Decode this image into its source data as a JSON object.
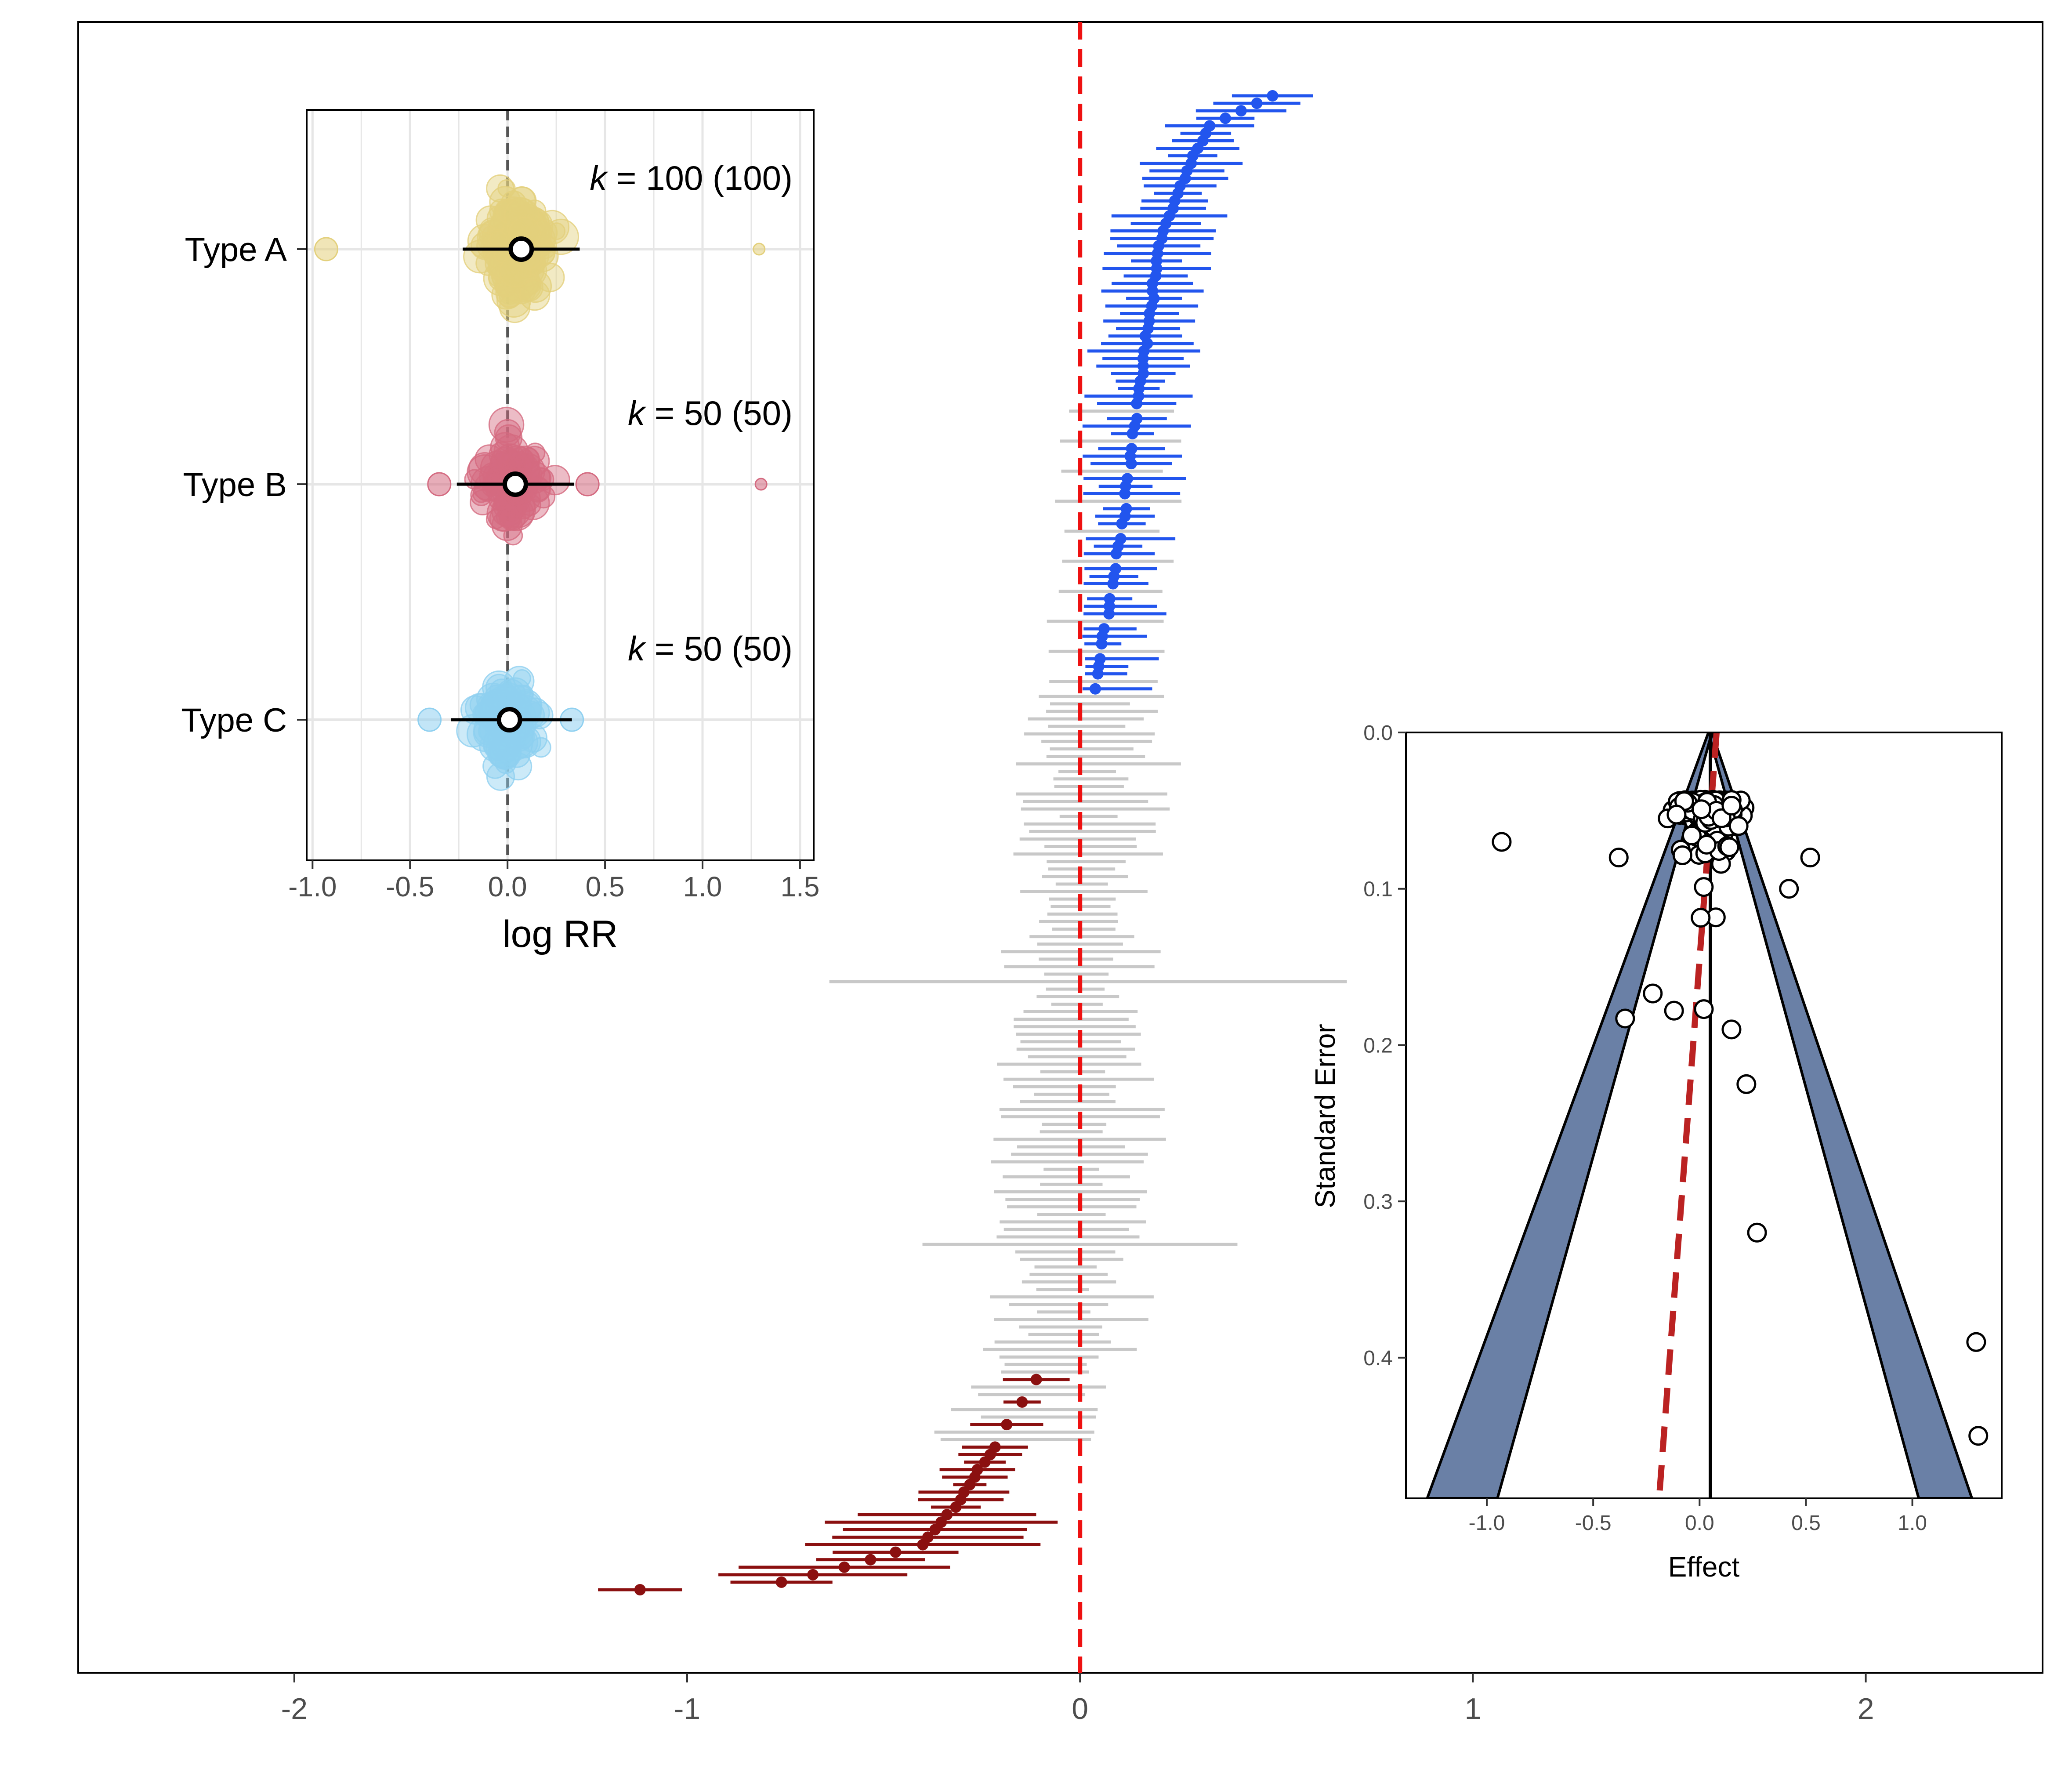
{
  "colors": {
    "positive": "#2255ee",
    "negative": "#8b1010",
    "nonsignificant": "#c8c8c8",
    "null_line": "#ee1111",
    "type_a": "#e3d07c",
    "type_b": "#d46a80",
    "type_c": "#8fd0f0",
    "funnel_band": "#6a80a6",
    "funnel_bias_line": "#bb2222"
  },
  "chart_data": [
    {
      "name": "main-forest-plot",
      "type": "scatter",
      "subtype": "forest (sorted effect sizes with confidence intervals)",
      "title": "",
      "xlabel": "",
      "ylabel": "",
      "xlim": [
        -2.55,
        2.45
      ],
      "xticks": [
        -2,
        -1,
        0,
        1,
        2
      ],
      "xtick_labels": [
        "-2",
        "-1",
        "0",
        "1",
        "2"
      ],
      "null_value": 0,
      "n_studies": 200,
      "n_positive_significant": 80,
      "n_negative_significant": 30,
      "rank_anchors": [
        [
          0,
          0.49
        ],
        [
          4,
          0.33
        ],
        [
          10,
          0.27
        ],
        [
          20,
          0.2
        ],
        [
          40,
          0.15
        ],
        [
          60,
          0.1
        ],
        [
          75,
          0.05
        ],
        [
          90,
          0.02
        ],
        [
          110,
          0.0
        ],
        [
          130,
          -0.02
        ],
        [
          150,
          -0.03
        ],
        [
          165,
          -0.05
        ],
        [
          170,
          -0.1
        ],
        [
          180,
          -0.22
        ],
        [
          188,
          -0.32
        ],
        [
          193,
          -0.4
        ],
        [
          196,
          -0.6
        ],
        [
          198,
          -0.76
        ],
        [
          199,
          -1.12
        ]
      ],
      "significance_rule": "rank < 80: positive (blue); rank >= 170: negative (dark red); otherwise not significant (grey)"
    },
    {
      "name": "inset-subgroup-plot",
      "type": "scatter",
      "subtype": "beeswarm with pooled estimates",
      "xlabel": "log RR",
      "xlim": [
        -1.03,
        1.57
      ],
      "xticks": [
        -1.0,
        -0.5,
        0.0,
        0.5,
        1.0,
        1.5
      ],
      "xtick_labels": [
        "-1.0",
        "-0.5",
        "0.0",
        "0.5",
        "1.0",
        "1.5"
      ],
      "null_value": 0,
      "groups": [
        {
          "label": "Type A",
          "k_label": "k",
          "k_text": " = 100 (100)",
          "k": 100,
          "estimate": 0.07,
          "ci": [
            -0.23,
            0.37
          ],
          "outliers": [
            -0.93,
            1.29
          ]
        },
        {
          "label": "Type B",
          "k_label": "k",
          "k_text": " = 50 (50)",
          "k": 50,
          "estimate": 0.04,
          "ci": [
            -0.26,
            0.34
          ],
          "outliers": [
            -0.35,
            0.41,
            1.3
          ]
        },
        {
          "label": "Type C",
          "k_label": "k",
          "k_text": " = 50 (50)",
          "k": 50,
          "estimate": 0.01,
          "ci": [
            -0.29,
            0.33
          ],
          "outliers": [
            -0.4,
            0.33
          ]
        }
      ]
    },
    {
      "name": "inset-funnel-plot",
      "type": "scatter",
      "subtype": "funnel plot",
      "xlabel": "Effect",
      "ylabel": "Standard Error",
      "xlim": [
        -1.38,
        1.42
      ],
      "ylim_reversed": [
        0.0,
        0.49
      ],
      "xticks": [
        -1.0,
        -0.5,
        0.0,
        0.5,
        1.0
      ],
      "xtick_labels": [
        "-1.0",
        "-0.5",
        "0.0",
        "0.5",
        "1.0"
      ],
      "yticks": [
        0.0,
        0.1,
        0.2,
        0.3,
        0.4
      ],
      "ytick_labels": [
        "0.0",
        "0.1",
        "0.2",
        "0.3",
        "0.4"
      ],
      "pooled_effect": 0.05,
      "band_at_bottom": {
        "outer": [
          -1.28,
          1.28
        ],
        "inner": [
          -0.95,
          1.03
        ]
      },
      "bias_line": [
        [
          0.08,
          0.0
        ],
        [
          -0.19,
          0.49
        ]
      ],
      "points_extreme": [
        [
          -0.93,
          0.07
        ],
        [
          -0.38,
          0.08
        ],
        [
          0.52,
          0.08
        ],
        [
          0.42,
          0.1
        ],
        [
          -0.35,
          0.183
        ],
        [
          0.15,
          0.19
        ],
        [
          0.22,
          0.225
        ],
        [
          0.27,
          0.32
        ],
        [
          1.3,
          0.39
        ],
        [
          1.31,
          0.45
        ],
        [
          -0.22,
          0.167
        ],
        [
          0.02,
          0.177
        ],
        [
          -0.12,
          0.178
        ]
      ],
      "points_core_center": [
        0.04,
        0.055
      ],
      "points_core_spread": [
        0.36,
        0.05
      ]
    }
  ]
}
